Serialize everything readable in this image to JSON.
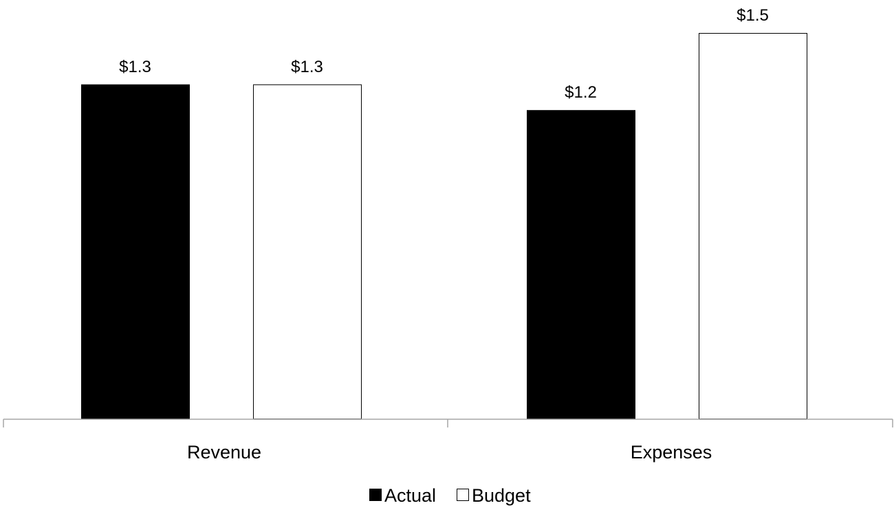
{
  "chart_data": {
    "type": "bar",
    "categories": [
      "Revenue",
      "Expenses"
    ],
    "series": [
      {
        "name": "Actual",
        "values": [
          1.3,
          1.2
        ],
        "labels": [
          "$1.3",
          "$1.2"
        ],
        "fill": "#000000",
        "stroke": "#000000"
      },
      {
        "name": "Budget",
        "values": [
          1.3,
          1.5
        ],
        "labels": [
          "$1.3",
          "$1.5"
        ],
        "fill": "#ffffff",
        "stroke": "#000000"
      }
    ],
    "title": "",
    "xlabel": "",
    "ylabel": "",
    "ylim": [
      0,
      1.5
    ],
    "grid": false,
    "legend_position": "bottom-center",
    "axis_color": "#a6a6a6"
  }
}
